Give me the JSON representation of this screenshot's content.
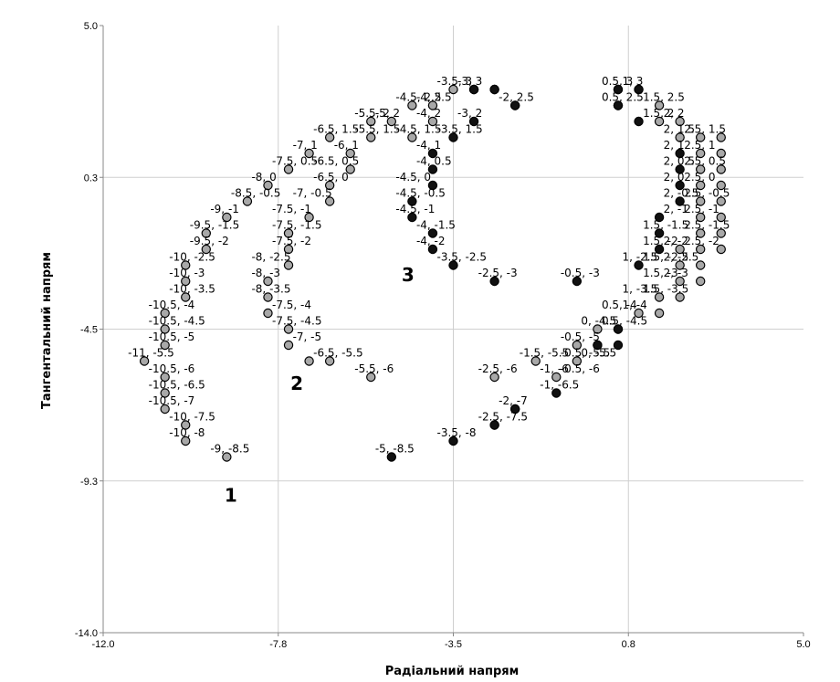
{
  "chart_data": {
    "type": "scatter",
    "xlabel": "Радіальний напрям",
    "ylabel": "Тангентальний напрям",
    "xlim": [
      -12.0,
      5.0
    ],
    "ylim": [
      -14.0,
      5.0
    ],
    "x_ticks": [
      "-12.0",
      "-7.8",
      "-3.5",
      "0.8",
      "5.0"
    ],
    "x_tick_values": [
      -12.0,
      -7.75,
      -3.5,
      0.75,
      5.0
    ],
    "y_ticks": [
      "5.0",
      "0.3",
      "-4.5",
      "-9.3",
      "-14.0"
    ],
    "y_tick_values": [
      5.0,
      0.25,
      -4.5,
      -9.25,
      -14.0
    ],
    "grid": true,
    "colors": {
      "grid": "#cfcfcf",
      "axis": "#888888",
      "gray_marker": "#a8a8a8",
      "dark_marker": "#111111",
      "marker_edge": "#000000"
    },
    "group_labels": [
      {
        "text": "1",
        "x": -8.9,
        "y": -9.9
      },
      {
        "text": "2",
        "x": -7.3,
        "y": -6.4
      },
      {
        "text": "3",
        "x": -4.6,
        "y": -3.0
      }
    ],
    "series": [
      {
        "style": "gray",
        "points": [
          [
            -9,
            -8.5
          ],
          [
            -10,
            -8
          ],
          [
            -10,
            -7.5
          ],
          [
            -10.5,
            -7
          ],
          [
            -10.5,
            -6.5
          ],
          [
            -10.5,
            -6
          ],
          [
            -11,
            -5.5
          ],
          [
            -10.5,
            -5
          ],
          [
            -10.5,
            -4.5
          ],
          [
            -10.5,
            -4
          ],
          [
            -10,
            -3.5
          ],
          [
            -10,
            -3
          ],
          [
            -10,
            -2.5
          ],
          [
            -9.5,
            -2
          ],
          [
            -9.5,
            -1.5
          ],
          [
            -9,
            -1
          ],
          [
            -8.5,
            -0.5
          ],
          [
            -8,
            0
          ],
          [
            -7.5,
            0.5
          ],
          [
            -7,
            1
          ],
          [
            -6.5,
            1.5
          ],
          [
            -5.5,
            2
          ],
          [
            -5,
            2
          ],
          [
            -4.5,
            2.5
          ],
          [
            -4,
            2.5
          ],
          [
            -3.5,
            3
          ],
          [
            -3,
            3
          ],
          [
            -2.5,
            3
          ],
          [
            -2,
            2.5
          ],
          [
            -7.5,
            -4.5
          ],
          [
            -8,
            -4
          ],
          [
            -8,
            -3.5
          ],
          [
            -8,
            -3
          ],
          [
            -7.5,
            -2.5
          ],
          [
            -7.5,
            -2
          ],
          [
            -7.5,
            -1.5
          ],
          [
            -7,
            -1
          ],
          [
            -6.5,
            -0.5
          ],
          [
            -6.5,
            0
          ],
          [
            -6,
            0.5
          ],
          [
            -6,
            1
          ],
          [
            -5.5,
            1.5
          ],
          [
            -4.5,
            1.5
          ],
          [
            -4,
            2
          ],
          [
            -7.5,
            -5
          ],
          [
            -7,
            -5.5
          ],
          [
            -6.5,
            -5.5
          ],
          [
            -5.5,
            -6
          ],
          [
            0.5,
            3
          ],
          [
            1,
            3
          ],
          [
            0.5,
            2.5
          ],
          [
            1.5,
            2.5
          ],
          [
            1.5,
            2
          ],
          [
            2,
            2
          ],
          [
            2,
            1.5
          ],
          [
            2.5,
            1.5
          ],
          [
            3,
            1.5
          ],
          [
            2.5,
            1
          ],
          [
            3,
            1
          ],
          [
            2.5,
            0.5
          ],
          [
            3,
            0.5
          ],
          [
            2.5,
            0
          ],
          [
            3,
            0
          ],
          [
            2.5,
            -0.5
          ],
          [
            3,
            -0.5
          ],
          [
            2.5,
            -1
          ],
          [
            3,
            -1
          ],
          [
            2.5,
            -1.5
          ],
          [
            3,
            -1.5
          ],
          [
            2,
            -2
          ],
          [
            2.5,
            -2
          ],
          [
            3,
            -2
          ],
          [
            2,
            -2.5
          ],
          [
            2.5,
            -2.5
          ],
          [
            2,
            -3
          ],
          [
            2.5,
            -3
          ],
          [
            1.5,
            -3.5
          ],
          [
            2,
            -3.5
          ],
          [
            1.5,
            -4
          ],
          [
            1,
            -4
          ],
          [
            0.5,
            -4.5
          ],
          [
            0,
            -4.5
          ],
          [
            -0.5,
            -5
          ],
          [
            0,
            -5
          ],
          [
            -0.5,
            -5.5
          ],
          [
            -1,
            -6
          ],
          [
            -1.5,
            -5.5
          ],
          [
            -2.5,
            -6
          ],
          [
            -2,
            -7
          ],
          [
            -2.5,
            -7.5
          ]
        ]
      },
      {
        "style": "dark",
        "points": [
          [
            -4,
            1
          ],
          [
            -4,
            0.5
          ],
          [
            -4,
            0
          ],
          [
            -4.5,
            -0.5
          ],
          [
            -4.5,
            -1
          ],
          [
            -4,
            -1.5
          ],
          [
            -4,
            -2
          ],
          [
            -3.5,
            -2.5
          ],
          [
            -2.5,
            -3
          ],
          [
            -0.5,
            -3
          ],
          [
            -3,
            2
          ],
          [
            -3.5,
            1.5
          ],
          [
            -5,
            -8.5
          ],
          [
            -3.5,
            -8
          ],
          [
            -2.5,
            -7.5
          ],
          [
            -2,
            -7
          ],
          [
            -1,
            -6.5
          ],
          [
            0.5,
            2.5
          ],
          [
            1,
            2
          ],
          [
            2,
            1
          ],
          [
            2,
            0.5
          ],
          [
            2,
            0
          ],
          [
            2,
            -0.5
          ],
          [
            1.5,
            -1
          ],
          [
            1.5,
            -1.5
          ],
          [
            1.5,
            -2
          ],
          [
            1,
            -2.5
          ],
          [
            0.5,
            -4.5
          ],
          [
            0.5,
            -5
          ],
          [
            0,
            -5
          ],
          [
            -2,
            2.5
          ],
          [
            -3,
            3
          ],
          [
            -2.5,
            3
          ],
          [
            0.5,
            3
          ],
          [
            1,
            3
          ]
        ]
      }
    ],
    "point_labels": [
      "-9, -8.5",
      "-10, -8",
      "-10, -7.5",
      "-10.5, -7",
      "-10.5, -6.5",
      "-10.5, -6",
      "-11, -5.5",
      "-10.5, -5",
      "-10.5, -4.5",
      "-10.5, -4",
      "-10, -3.5",
      "-10, -3",
      "-10, -2.5",
      "-9.5, -2",
      "-9.5, -1.5",
      "-9, -1",
      "-8.5, -0.5",
      "-8, 0",
      "-7.5, 0.5",
      "-7, 1",
      "-6.5, 1.5",
      "-5.5, 2",
      "-5, 2",
      "-4.5, 2.5",
      "-4, 2.5",
      "-3.5, 3",
      "-3, 3",
      "-2, 2.5",
      "-7.5, -4.5",
      "-7.5, -4",
      "-8, -3.5",
      "-8, -3",
      "-8, -2.5",
      "-7.5, -2",
      "-7.5, -1.5",
      "-7.5, -1",
      "-7, -0.5",
      "-6.5, 0",
      "-6.5, 0.5",
      "-6, 1",
      "-5.5, 1.5",
      "-4.5, 1.5",
      "-4, 2",
      "-7, -5",
      "-6.5, -5.5",
      "-5.5, -6",
      "-4.5, 0",
      "-4, 1",
      "-4, 0.5",
      "-4.5, -0.5",
      "-4.5, -1",
      "-4, -1.5",
      "-4, -2",
      "-3.5, -2.5",
      "-2.5, -3",
      "-0.5, -3",
      "-3, 2",
      "-3.5, 1.5",
      "-5, -8.5",
      "-3.5, -8",
      "-2.5, -7.5",
      "-2, -7",
      "-1, -6.5",
      "-2.5, -6",
      "-1.5, -5.5",
      "0.5, 3",
      "1, 3",
      "0.5, 2.5",
      "1.5, 2.5",
      "1.5, 2",
      "2, 2",
      "2, 1.5",
      "2.5, 1.5",
      "2, 1",
      "2.5, 1",
      "2, 0.5",
      "2.5, 0.5",
      "2, 0",
      "2.5, 0",
      "2, -0.5",
      "2.5, -0.5",
      "2, -1",
      "2.5, -1",
      "1.5, -1.5",
      "2.5, -1.5",
      "1.5, -2",
      "2, -2",
      "2.5, -2",
      "1, -2.5",
      "1.5, -2.5",
      "2, -2.5",
      "1.5, -3",
      "2, -3",
      "1, -3.5",
      "1.5, -3.5",
      "0.5, -4",
      "1, -4",
      "0, -4.5",
      "0.5, -4.5",
      "-0.5, -5",
      "-0.5, -5.5",
      "0, -5.5",
      "-0.5, -6",
      "-1, -6"
    ]
  }
}
